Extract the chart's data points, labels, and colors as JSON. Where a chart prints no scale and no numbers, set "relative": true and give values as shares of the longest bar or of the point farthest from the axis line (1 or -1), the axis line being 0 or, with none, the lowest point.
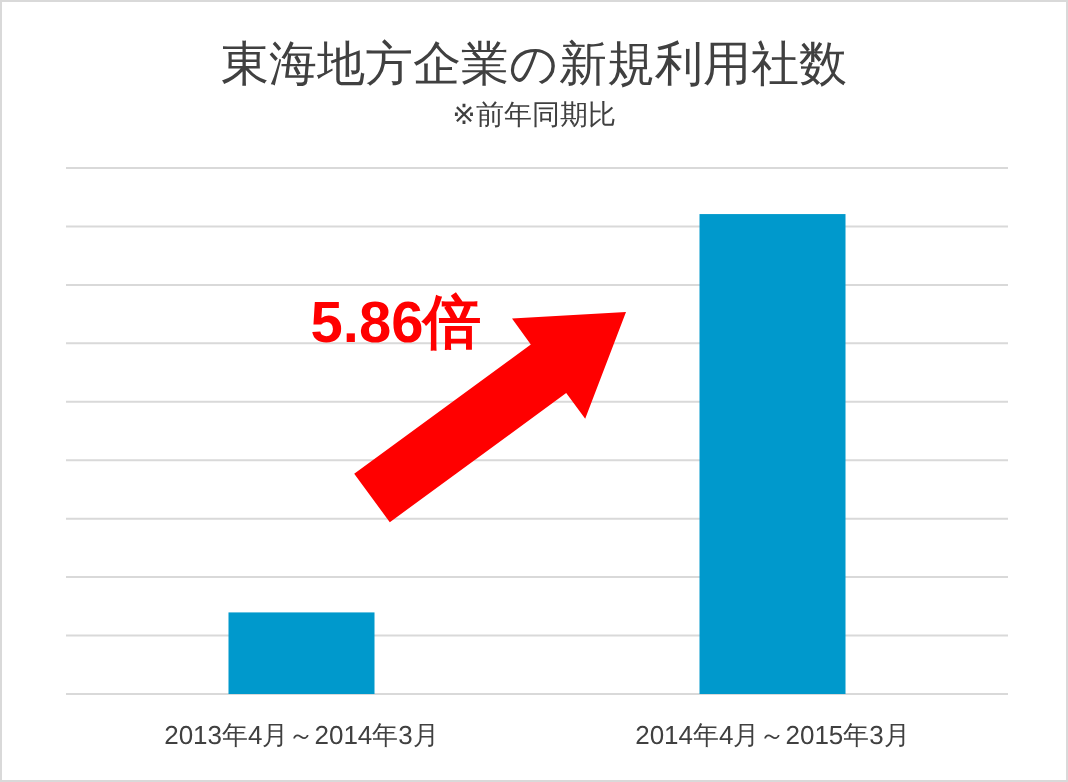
{
  "chart_data": {
    "type": "bar",
    "title": "東海地方企業の新規利用社数",
    "subtitle": "※前年同期比",
    "categories": [
      "2013年4月～2014年3月",
      "2014年4月～2015年3月"
    ],
    "values": [
      0.17,
      1
    ],
    "relative": true,
    "color": "#0099cc",
    "grid": "y",
    "annotations": [
      "5.86倍"
    ]
  }
}
